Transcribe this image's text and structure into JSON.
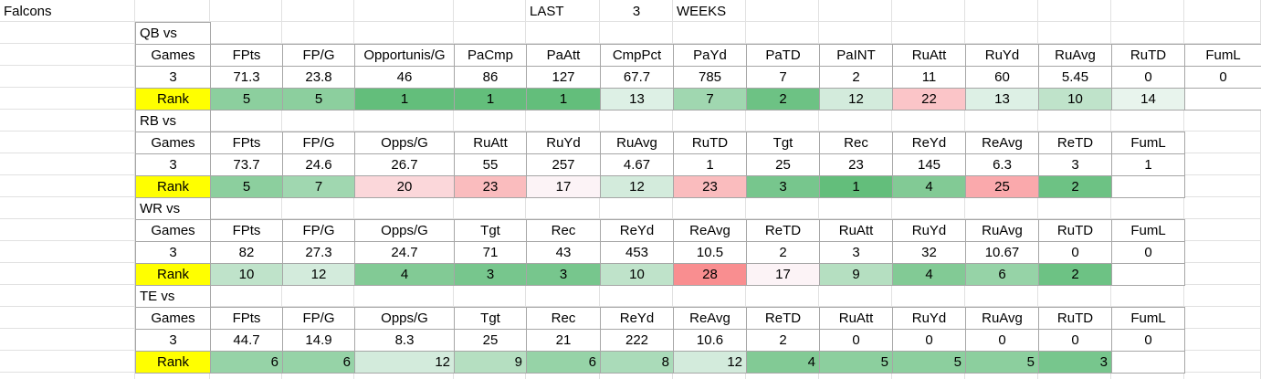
{
  "header": {
    "team": "Falcons",
    "last": "LAST",
    "count": 3,
    "weeks": "WEEKS"
  },
  "sections": [
    {
      "title": "QB vs",
      "headers": [
        "Games",
        "FPts",
        "FP/G",
        "Opportunis/G",
        "PaCmp",
        "PaAtt",
        "CmpPct",
        "PaYd",
        "PaTD",
        "PaINT",
        "RuAtt",
        "RuYd",
        "RuAvg",
        "RuTD",
        "FumL"
      ],
      "values": [
        3,
        71.3,
        23.8,
        46,
        86,
        127,
        67.7,
        785,
        7,
        2,
        11,
        60,
        5.45,
        0,
        0
      ],
      "rank_label": "Rank",
      "ranks": [
        5,
        5,
        1,
        1,
        1,
        13,
        7,
        2,
        12,
        22,
        13,
        10,
        14
      ]
    },
    {
      "title": "RB vs",
      "headers": [
        "Games",
        "FPts",
        "FP/G",
        "Opps/G",
        "RuAtt",
        "RuYd",
        "RuAvg",
        "RuTD",
        "Tgt",
        "Rec",
        "ReYd",
        "ReAvg",
        "ReTD",
        "FumL"
      ],
      "values": [
        3,
        73.7,
        24.6,
        26.7,
        55,
        257,
        4.67,
        1,
        25,
        23,
        145,
        6.3,
        3,
        1
      ],
      "rank_label": "Rank",
      "ranks": [
        5,
        7,
        20,
        23,
        17,
        12,
        23,
        3,
        1,
        4,
        25,
        2
      ]
    },
    {
      "title": "WR vs",
      "headers": [
        "Games",
        "FPts",
        "FP/G",
        "Opps/G",
        "Tgt",
        "Rec",
        "ReYd",
        "ReAvg",
        "ReTD",
        "RuAtt",
        "RuYd",
        "RuAvg",
        "RuTD",
        "FumL"
      ],
      "values": [
        3,
        82,
        27.3,
        24.7,
        71,
        43,
        453,
        10.5,
        2,
        3,
        32,
        10.67,
        0,
        0
      ],
      "rank_label": "Rank",
      "ranks": [
        10,
        12,
        4,
        3,
        3,
        10,
        28,
        17,
        9,
        4,
        6,
        2
      ]
    },
    {
      "title": "TE vs",
      "headers": [
        "Games",
        "FPts",
        "FP/G",
        "Opps/G",
        "Tgt",
        "Rec",
        "ReYd",
        "ReAvg",
        "ReTD",
        "RuAtt",
        "RuYd",
        "RuAvg",
        "RuTD",
        "FumL"
      ],
      "values": [
        3,
        44.7,
        14.9,
        8.3,
        25,
        21,
        222,
        10.6,
        2,
        0,
        0,
        0,
        0,
        0
      ],
      "rank_label": "Rank",
      "ranks": [
        6,
        6,
        12,
        9,
        6,
        8,
        12,
        4,
        5,
        5,
        5,
        3
      ]
    }
  ]
}
